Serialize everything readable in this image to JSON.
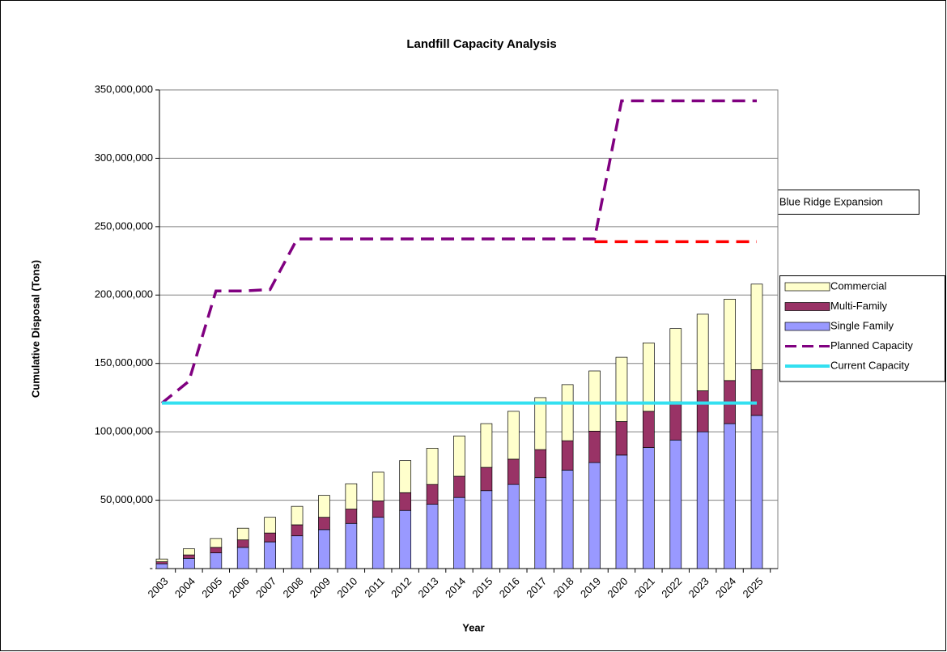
{
  "chart_data": {
    "type": "bar",
    "stacked": true,
    "title": "Landfill Capacity Analysis",
    "x_label": "Year",
    "y_label": "Cumulative Disposal (Tons)",
    "categories": [
      "2003",
      "2004",
      "2005",
      "2006",
      "2007",
      "2008",
      "2009",
      "2010",
      "2011",
      "2012",
      "2013",
      "2014",
      "2015",
      "2016",
      "2017",
      "2018",
      "2019",
      "2020",
      "2021",
      "2022",
      "2023",
      "2024",
      "2025"
    ],
    "series": [
      {
        "name": "Single Family",
        "type": "bar",
        "color": "#9999ff",
        "values": [
          3500000,
          7500000,
          11500000,
          15500000,
          19500000,
          24000000,
          28500000,
          33000000,
          37500000,
          42500000,
          47000000,
          52000000,
          57000000,
          61500000,
          66500000,
          72000000,
          77500000,
          83000000,
          88500000,
          94000000,
          100000000,
          106000000,
          112000000
        ]
      },
      {
        "name": "Multi-Family",
        "type": "bar",
        "color": "#993366",
        "values": [
          1500000,
          2500000,
          4000000,
          5500000,
          6500000,
          8000000,
          9000000,
          10500000,
          12000000,
          13000000,
          14500000,
          15500000,
          17000000,
          18500000,
          20500000,
          21500000,
          23000000,
          24500000,
          26500000,
          28000000,
          30000000,
          31500000,
          33500000
        ]
      },
      {
        "name": "Commercial",
        "type": "bar",
        "color": "#ffffcc",
        "values": [
          2000000,
          4500000,
          6500000,
          8500000,
          11500000,
          13500000,
          16000000,
          18500000,
          21000000,
          23500000,
          26500000,
          29500000,
          32000000,
          35000000,
          38000000,
          41000000,
          44000000,
          47000000,
          50000000,
          53500000,
          56000000,
          59500000,
          62500000
        ]
      },
      {
        "name": "Planned Capacity",
        "type": "line",
        "color": "#800080",
        "dashed": true,
        "values": [
          121000000,
          137000000,
          203000000,
          203000000,
          204000000,
          241000000,
          241000000,
          241000000,
          241000000,
          241000000,
          241000000,
          241000000,
          241000000,
          241000000,
          241000000,
          241000000,
          241000000,
          342000000,
          342000000,
          342000000,
          342000000,
          342000000,
          342000000
        ]
      },
      {
        "name": "Current Capacity",
        "type": "line",
        "color": "#33e0f0",
        "dashed": false,
        "values": [
          121000000,
          121000000,
          121000000,
          121000000,
          121000000,
          121000000,
          121000000,
          121000000,
          121000000,
          121000000,
          121000000,
          121000000,
          121000000,
          121000000,
          121000000,
          121000000,
          121000000,
          121000000,
          121000000,
          121000000,
          121000000,
          121000000,
          121000000
        ]
      },
      {
        "type": "line",
        "color": "#ff0000",
        "dashed": true,
        "values": [
          null,
          null,
          null,
          null,
          null,
          null,
          null,
          null,
          null,
          null,
          null,
          null,
          null,
          null,
          null,
          null,
          239000000,
          239000000,
          239000000,
          239000000,
          239000000,
          239000000,
          239000000
        ]
      }
    ],
    "annotation": "Without Blue Ridge Expansion",
    "ylim": [
      0,
      350000000
    ],
    "yticks": [
      {
        "value": 0,
        "label": "-"
      },
      {
        "value": 50000000,
        "label": "50,000,000"
      },
      {
        "value": 100000000,
        "label": "100,000,000"
      },
      {
        "value": 150000000,
        "label": "150,000,000"
      },
      {
        "value": 200000000,
        "label": "200,000,000"
      },
      {
        "value": 250000000,
        "label": "250,000,000"
      },
      {
        "value": 300000000,
        "label": "300,000,000"
      },
      {
        "value": 350000000,
        "label": "350,000,000"
      }
    ],
    "grid": true,
    "legend": "right"
  }
}
